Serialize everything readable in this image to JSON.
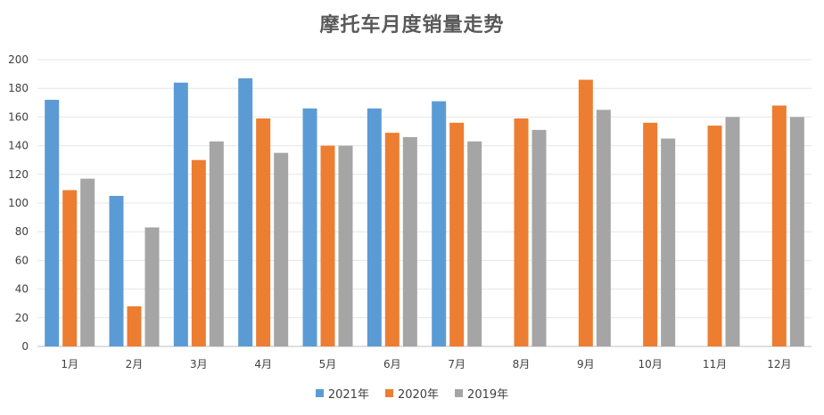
{
  "chart_data": {
    "type": "bar",
    "title": "摩托车月度销量走势",
    "categories": [
      "1月",
      "2月",
      "3月",
      "4月",
      "5月",
      "6月",
      "7月",
      "8月",
      "9月",
      "10月",
      "11月",
      "12月"
    ],
    "series": [
      {
        "name": "2021年",
        "color": "#5B9BD5",
        "values": [
          172,
          105,
          184,
          187,
          166,
          166,
          171,
          null,
          null,
          null,
          null,
          null
        ]
      },
      {
        "name": "2020年",
        "color": "#ED7D31",
        "values": [
          109,
          28,
          130,
          159,
          140,
          149,
          156,
          159,
          186,
          156,
          154,
          168
        ]
      },
      {
        "name": "2019年",
        "color": "#A5A5A5",
        "values": [
          117,
          83,
          143,
          135,
          140,
          146,
          143,
          151,
          165,
          145,
          160,
          160
        ]
      }
    ],
    "yticks": [
      "0",
      "20",
      "40",
      "60",
      "80",
      "100",
      "120",
      "140",
      "160",
      "180",
      "200"
    ],
    "ylim": [
      0,
      200
    ],
    "grid": true,
    "legend_position": "bottom"
  }
}
